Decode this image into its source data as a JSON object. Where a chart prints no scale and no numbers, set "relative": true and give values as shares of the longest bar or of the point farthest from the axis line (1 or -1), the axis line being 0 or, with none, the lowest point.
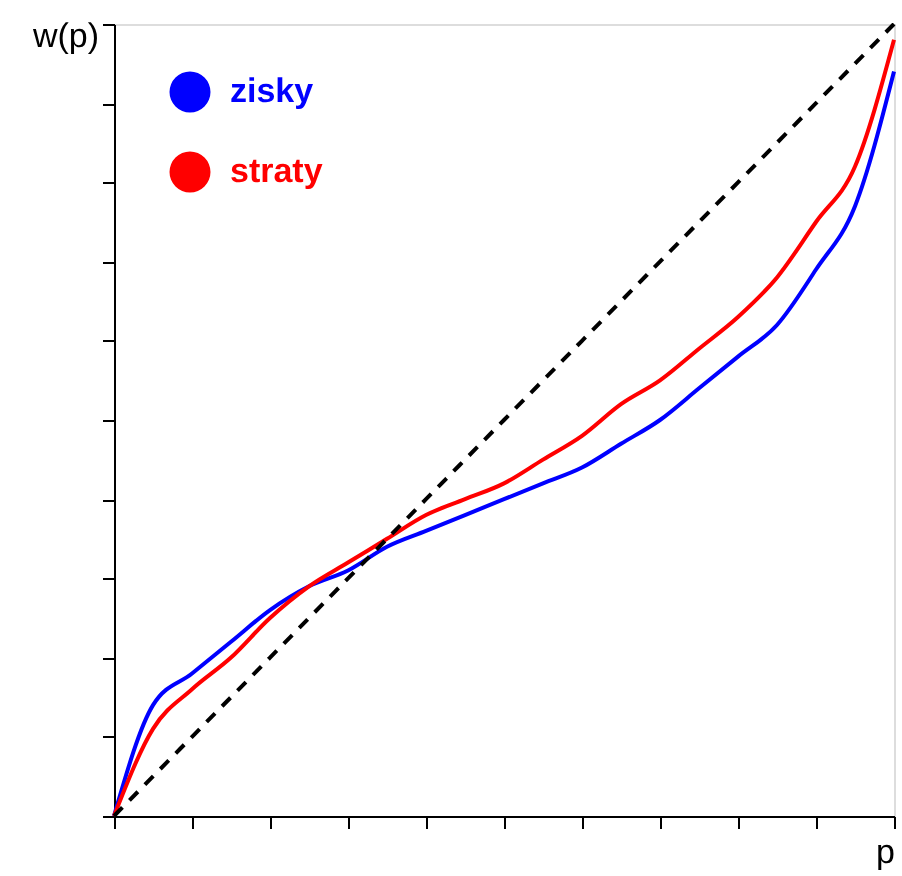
{
  "chart_data": {
    "type": "line",
    "relative": true,
    "xlabel": "p",
    "ylabel": "w(p)",
    "categories": [
      null,
      null,
      null,
      null,
      null,
      null,
      null,
      null,
      null,
      null,
      null,
      null,
      null,
      null,
      null,
      null,
      null,
      null,
      null,
      null,
      null
    ],
    "series": [
      {
        "name": "zisky",
        "color": "#0000ff",
        "line_style": "solid",
        "values": [
          0,
          0.14,
          0.18,
          0.22,
          0.26,
          0.29,
          0.31,
          0.34,
          0.36,
          0.38,
          0.4,
          0.42,
          0.44,
          0.47,
          0.5,
          0.54,
          0.58,
          0.62,
          0.69,
          0.77,
          0.94
        ]
      },
      {
        "name": "straty",
        "color": "#ff0000",
        "line_style": "solid",
        "values": [
          0,
          0.11,
          0.16,
          0.2,
          0.25,
          0.29,
          0.32,
          0.35,
          0.38,
          0.4,
          0.42,
          0.45,
          0.48,
          0.52,
          0.55,
          0.59,
          0.63,
          0.68,
          0.75,
          0.82,
          0.98
        ]
      },
      {
        "color": "#000000",
        "line_style": "dashed",
        "values": [
          0,
          0.05,
          0.1,
          0.15,
          0.2,
          0.25,
          0.3,
          0.35,
          0.4,
          0.45,
          0.5,
          0.55,
          0.6,
          0.65,
          0.7,
          0.75,
          0.8,
          0.85,
          0.9,
          0.95,
          1
        ]
      }
    ],
    "legend": "top left",
    "grid": false,
    "tick_labels": false
  }
}
